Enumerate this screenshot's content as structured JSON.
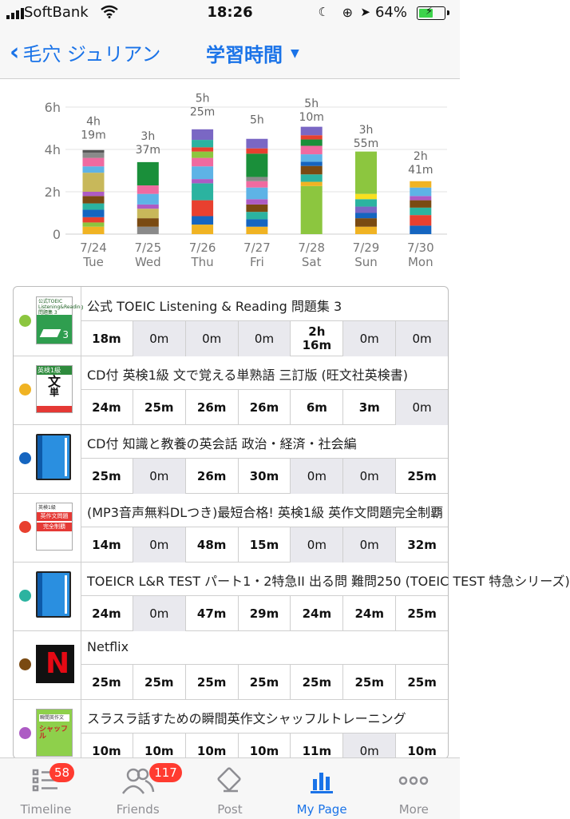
{
  "status_bar": {
    "carrier": "SoftBank",
    "time": "18:26",
    "battery_percent": "64%",
    "battery_level": 0.64,
    "icons": [
      "signal-icon",
      "wifi-icon",
      "moon-icon",
      "rotation-lock-icon",
      "location-icon",
      "battery-icon"
    ]
  },
  "nav": {
    "back_label": "毛穴 ジュリアン",
    "title": "学習時間",
    "caret": "▼"
  },
  "colors": {
    "accent": "#1a73e8",
    "badge": "#ff3b30",
    "grid": "#e3e3e3"
  },
  "chart_data": {
    "type": "bar",
    "stacked": true,
    "y_ticks": [
      "0",
      "2h",
      "4h",
      "6h"
    ],
    "ylim": [
      0,
      6
    ],
    "grid": true,
    "categories": [
      {
        "date": "7/24",
        "day": "Tue",
        "total_h": "4h",
        "total_m": "19m",
        "total_hours": 4.32
      },
      {
        "date": "7/25",
        "day": "Wed",
        "total_h": "3h",
        "total_m": "37m",
        "total_hours": 3.62
      },
      {
        "date": "7/26",
        "day": "Thu",
        "total_h": "5h",
        "total_m": "25m",
        "total_hours": 5.42
      },
      {
        "date": "7/27",
        "day": "Fri",
        "total_h": "5h",
        "total_m": "",
        "total_hours": 5.0
      },
      {
        "date": "7/28",
        "day": "Sat",
        "total_h": "5h",
        "total_m": "10m",
        "total_hours": 5.17
      },
      {
        "date": "7/29",
        "day": "Sun",
        "total_h": "3h",
        "total_m": "55m",
        "total_hours": 3.92
      },
      {
        "date": "7/30",
        "day": "Mon",
        "total_h": "2h",
        "total_m": "41m",
        "total_hours": 2.68
      }
    ],
    "segments": [
      [
        {
          "c": "#f0b323",
          "h": 0.35
        },
        {
          "c": "#8cc63f",
          "h": 0.2
        },
        {
          "c": "#e8402f",
          "h": 0.25
        },
        {
          "c": "#1565c0",
          "h": 0.35
        },
        {
          "c": "#2bb3a0",
          "h": 0.3
        },
        {
          "c": "#7a4a12",
          "h": 0.35
        },
        {
          "c": "#ad5bc4",
          "h": 0.2
        },
        {
          "c": "#c8b85a",
          "h": 0.9
        },
        {
          "c": "#5eb3e6",
          "h": 0.3
        },
        {
          "c": "#f06aa0",
          "h": 0.4
        },
        {
          "c": "#8a8a8a",
          "h": 0.25
        },
        {
          "c": "#555555",
          "h": 0.12
        }
      ],
      [
        {
          "c": "#8a8a8a",
          "h": 0.35
        },
        {
          "c": "#7a4a12",
          "h": 0.4
        },
        {
          "c": "#c8b85a",
          "h": 0.45
        },
        {
          "c": "#ad5bc4",
          "h": 0.2
        },
        {
          "c": "#5eb3e6",
          "h": 0.5
        },
        {
          "c": "#f06aa0",
          "h": 0.4
        },
        {
          "c": "#1a8f3a",
          "h": 1.1
        }
      ],
      [
        {
          "c": "#f0b323",
          "h": 0.45
        },
        {
          "c": "#1565c0",
          "h": 0.4
        },
        {
          "c": "#e8402f",
          "h": 0.75
        },
        {
          "c": "#2bb3a0",
          "h": 0.8
        },
        {
          "c": "#ad5bc4",
          "h": 0.2
        },
        {
          "c": "#5eb3e6",
          "h": 0.6
        },
        {
          "c": "#f06aa0",
          "h": 0.4
        },
        {
          "c": "#8cc63f",
          "h": 0.3
        },
        {
          "c": "#e8402f",
          "h": 0.2
        },
        {
          "c": "#2bb3a0",
          "h": 0.35
        },
        {
          "c": "#7a67c4",
          "h": 0.5
        }
      ],
      [
        {
          "c": "#f0b323",
          "h": 0.35
        },
        {
          "c": "#1565c0",
          "h": 0.35
        },
        {
          "c": "#2bb3a0",
          "h": 0.35
        },
        {
          "c": "#7a4a12",
          "h": 0.35
        },
        {
          "c": "#ad5bc4",
          "h": 0.25
        },
        {
          "c": "#5eb3e6",
          "h": 0.55
        },
        {
          "c": "#f06aa0",
          "h": 0.3
        },
        {
          "c": "#8a8a8a",
          "h": 0.2
        },
        {
          "c": "#1a8f3a",
          "h": 1.1
        },
        {
          "c": "#e8402f",
          "h": 0.25
        },
        {
          "c": "#7a67c4",
          "h": 0.45
        }
      ],
      [
        {
          "c": "#8cc63f",
          "h": 2.27
        },
        {
          "c": "#f0b323",
          "h": 0.2
        },
        {
          "c": "#2bb3a0",
          "h": 0.35
        },
        {
          "c": "#7a4a12",
          "h": 0.4
        },
        {
          "c": "#1565c0",
          "h": 0.2
        },
        {
          "c": "#5eb3e6",
          "h": 0.35
        },
        {
          "c": "#f06aa0",
          "h": 0.4
        },
        {
          "c": "#1a8f3a",
          "h": 0.3
        },
        {
          "c": "#e8402f",
          "h": 0.2
        },
        {
          "c": "#7a67c4",
          "h": 0.4
        }
      ],
      [
        {
          "c": "#f0b323",
          "h": 0.35
        },
        {
          "c": "#7a4a12",
          "h": 0.4
        },
        {
          "c": "#1565c0",
          "h": 0.25
        },
        {
          "c": "#7a67c4",
          "h": 0.3
        },
        {
          "c": "#2bb3a0",
          "h": 0.35
        },
        {
          "c": "#f8e020",
          "h": 0.25
        },
        {
          "c": "#8cc63f",
          "h": 2.0
        }
      ],
      [
        {
          "c": "#1565c0",
          "h": 0.4
        },
        {
          "c": "#e8402f",
          "h": 0.5
        },
        {
          "c": "#2bb3a0",
          "h": 0.35
        },
        {
          "c": "#7a4a12",
          "h": 0.35
        },
        {
          "c": "#ad5bc4",
          "h": 0.2
        },
        {
          "c": "#5eb3e6",
          "h": 0.4
        },
        {
          "c": "#f0b323",
          "h": 0.3
        }
      ]
    ]
  },
  "materials": [
    {
      "name": "公式 TOEIC Listening & Reading 問題集 3",
      "color": "#8cc63f",
      "thumb": "toeic-book-cover",
      "values": [
        "18m",
        "0m",
        "0m",
        "0m",
        "2h\n16m",
        "0m",
        "0m"
      ]
    },
    {
      "name": "CD付 英検1級 文で覚える単熟語 三訂版 (旺文社英検書)",
      "color": "#f0b323",
      "thumb": "eiken-book-cover",
      "values": [
        "24m",
        "25m",
        "26m",
        "26m",
        "6m",
        "3m",
        "0m"
      ]
    },
    {
      "name": "CD付 知識と教養の英会話 政治・経済・社会編",
      "color": "#1565c0",
      "thumb": "generic-book-icon",
      "values": [
        "25m",
        "0m",
        "26m",
        "30m",
        "0m",
        "0m",
        "25m"
      ]
    },
    {
      "name": "(MP3音声無料DLつき)最短合格! 英検1級 英作文問題完全制覇",
      "color": "#e8402f",
      "thumb": "eiken-essay-cover",
      "values": [
        "14m",
        "0m",
        "48m",
        "15m",
        "0m",
        "0m",
        "32m"
      ]
    },
    {
      "name": "TOEICR L&R TEST パート1・2特急II 出る問 難問250 (TOEIC TEST 特急シリーズ)",
      "color": "#2bb3a0",
      "thumb": "generic-book-icon",
      "values": [
        "24m",
        "0m",
        "47m",
        "29m",
        "24m",
        "24m",
        "25m"
      ]
    },
    {
      "name": "Netflix",
      "color": "#7a4a12",
      "thumb": "netflix-logo",
      "values": [
        "25m",
        "25m",
        "25m",
        "25m",
        "25m",
        "25m",
        "25m"
      ]
    },
    {
      "name": "スラスラ話すための瞬間英作文シャッフルトレーニング",
      "color": "#ad5bc4",
      "thumb": "shuffle-book-cover",
      "values": [
        "10m",
        "10m",
        "10m",
        "10m",
        "11m",
        "0m",
        "10m"
      ]
    }
  ],
  "thumb_text": {
    "toeic": "公式TOEIC Listening&Reading 問題集 3",
    "eiken": "英検1級 文 単",
    "eiken_essay": "英検1級 英作文問題 完全制覇",
    "shuffle": "スラスラ話すための瞬間英作文シャッフル"
  },
  "tabbar": {
    "tabs": [
      {
        "label": "Timeline",
        "badge": "58",
        "icon": "timeline-icon"
      },
      {
        "label": "Friends",
        "badge": "117",
        "icon": "friends-icon"
      },
      {
        "label": "Post",
        "badge": "",
        "icon": "post-icon"
      },
      {
        "label": "My Page",
        "badge": "",
        "icon": "bar-chart-icon"
      },
      {
        "label": "More",
        "badge": "",
        "icon": "more-icon"
      }
    ],
    "active": 3
  }
}
